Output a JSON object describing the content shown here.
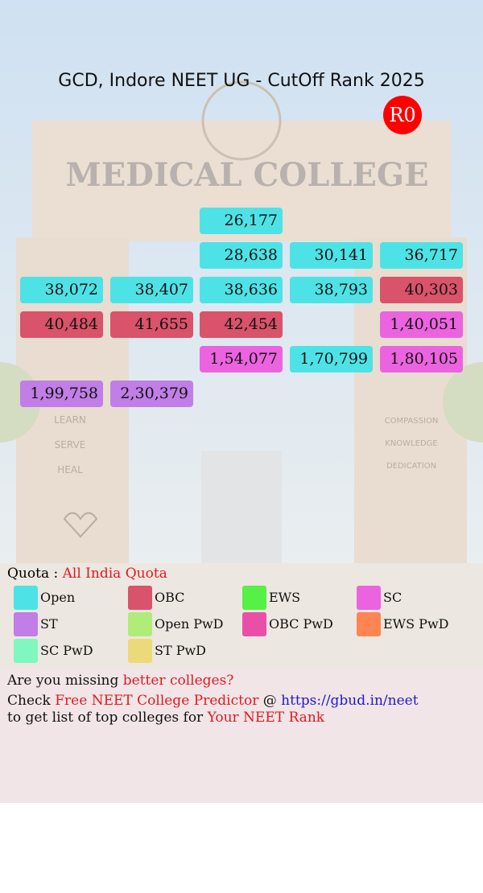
{
  "background": {
    "sign": "MEDICAL COLLEGE",
    "left_pillar": [
      "LEARN",
      "SERVE",
      "HEAL"
    ],
    "right_pillar": [
      "COMPASSION",
      "KNOWLEDGE",
      "DEDICATION"
    ]
  },
  "header": {
    "title": "GCD, Indore NEET UG - CutOff Rank 2025",
    "badge": "R0"
  },
  "grid": {
    "rows": [
      [
        null,
        null,
        {
          "text": "26,177",
          "color": "#4de3e6"
        },
        null,
        null
      ],
      [
        null,
        null,
        {
          "text": "28,638",
          "color": "#4de3e6"
        },
        {
          "text": "30,141",
          "color": "#4de3e6"
        },
        {
          "text": "36,717",
          "color": "#4de3e6"
        }
      ],
      [
        {
          "text": "38,072",
          "color": "#4de3e6"
        },
        {
          "text": "38,407",
          "color": "#4de3e6"
        },
        {
          "text": "38,636",
          "color": "#4de3e6"
        },
        {
          "text": "38,793",
          "color": "#4de3e6"
        },
        {
          "text": "40,303",
          "color": "#d9536a"
        }
      ],
      [
        {
          "text": "40,484",
          "color": "#d9536a"
        },
        {
          "text": "41,655",
          "color": "#d9536a"
        },
        {
          "text": "42,454",
          "color": "#d9536a"
        },
        null,
        {
          "text": "1,40,051",
          "color": "#ec63e0"
        }
      ],
      [
        null,
        null,
        {
          "text": "1,54,077",
          "color": "#ec63e0"
        },
        {
          "text": "1,70,799",
          "color": "#4de3e6"
        },
        {
          "text": "1,80,105",
          "color": "#ec63e0"
        }
      ],
      [
        {
          "text": "1,99,758",
          "color": "#c07ee6"
        },
        {
          "text": "2,30,379",
          "color": "#c07ee6"
        },
        null,
        null,
        null
      ]
    ]
  },
  "quota": {
    "label": "Quota : ",
    "value": "All India Quota"
  },
  "legend": [
    {
      "label": "Open",
      "color": "#4de3e6"
    },
    {
      "label": "OBC",
      "color": "#d9536a"
    },
    {
      "label": "EWS",
      "color": "#56f047"
    },
    {
      "label": "SC",
      "color": "#ec63e0"
    },
    {
      "label": "ST",
      "color": "#c07ee6"
    },
    {
      "label": "Open PwD",
      "color": "#b0ec78"
    },
    {
      "label": "OBC PwD",
      "color": "#ea4fa8"
    },
    {
      "label": "EWS PwD",
      "color": "#ff8552"
    },
    {
      "label": "SC PwD",
      "color": "#7ff7bf"
    },
    {
      "label": "ST PwD",
      "color": "#ecd97a"
    }
  ],
  "footer": {
    "lines": [
      [
        "Are you missing ",
        "better colleges?"
      ],
      [
        "Check ",
        "Free NEET College Predictor",
        " @ ",
        "https://gbud.in/neet"
      ],
      [
        "to get list of top colleges for ",
        "Your NEET Rank"
      ]
    ]
  }
}
